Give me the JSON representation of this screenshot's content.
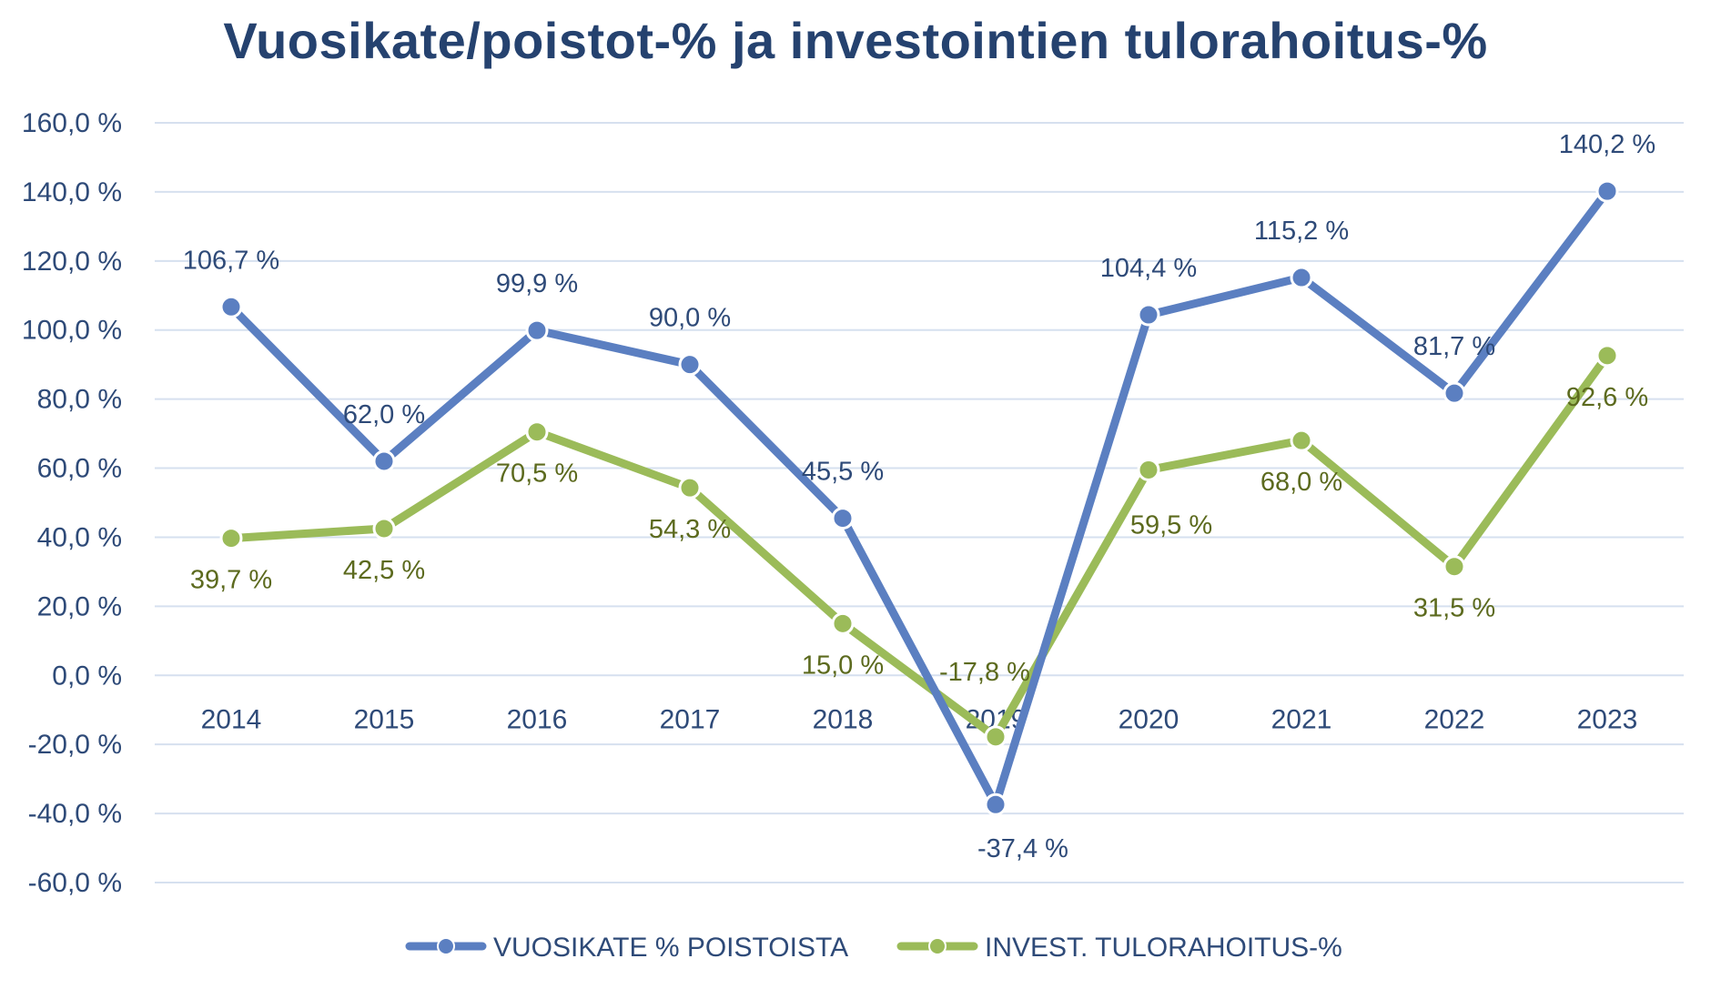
{
  "chart_data": {
    "type": "line",
    "title": "Vuosikate/poistot-% ja investointien tulorahoitus-%",
    "categories": [
      "2014",
      "2015",
      "2016",
      "2017",
      "2018",
      "2019",
      "2020",
      "2021",
      "2022",
      "2023"
    ],
    "ylim": [
      -60,
      160
    ],
    "yticks": [
      160,
      140,
      120,
      100,
      80,
      60,
      40,
      20,
      0,
      -20,
      -40,
      -60
    ],
    "ytick_labels": [
      "160,0 %",
      "140,0 %",
      "120,0 %",
      "100,0 %",
      "80,0 %",
      "60,0 %",
      "40,0 %",
      "20,0 %",
      "0,0 %",
      "-20,0 %",
      "-40,0 %",
      "-60,0 %"
    ],
    "grid": true,
    "legend_position": "bottom",
    "series": [
      {
        "name": "VUOSIKATE % POISTOISTA",
        "color": "#5b7fc1",
        "values": [
          106.7,
          62.0,
          99.9,
          90.0,
          45.5,
          -37.4,
          104.4,
          115.2,
          81.7,
          140.2
        ],
        "labels": [
          "106,7 %",
          "62,0 %",
          "99,9 %",
          "90,0 %",
          "45,5 %",
          "-37,4 %",
          "104,4 %",
          "115,2 %",
          "81,7 %",
          "140,2 %"
        ]
      },
      {
        "name": "INVEST. TULORAHOITUS-%",
        "color": "#9bbb59",
        "values": [
          39.7,
          42.5,
          70.5,
          54.3,
          15.0,
          -17.8,
          59.5,
          68.0,
          31.5,
          92.6
        ],
        "labels": [
          "39,7 %",
          "42,5 %",
          "70,5 %",
          "54,3 %",
          "15,0 %",
          "-17,8 %",
          "59,5 %",
          "68,0 %",
          "31,5 %",
          "92,6 %"
        ]
      }
    ]
  }
}
